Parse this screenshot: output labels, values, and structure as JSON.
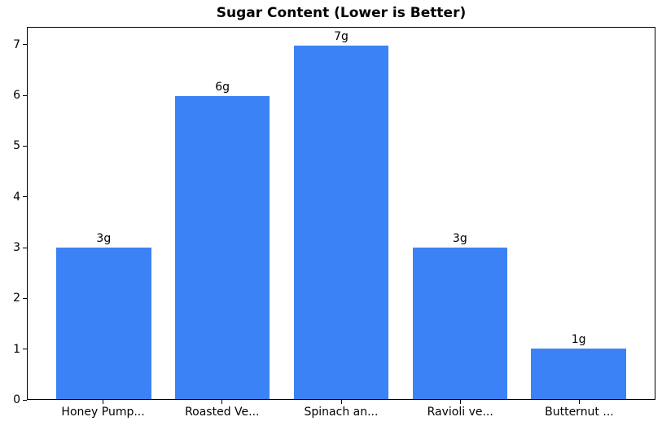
{
  "chart_data": {
    "type": "bar",
    "title": "Sugar Content (Lower is Better)",
    "categories": [
      "Honey Pump...",
      "Roasted Ve...",
      "Spinach an...",
      "Ravioli ve...",
      "Butternut ..."
    ],
    "values": [
      3,
      6,
      7,
      3,
      1
    ],
    "bar_labels": [
      "3g",
      "6g",
      "7g",
      "3g",
      "1g"
    ],
    "xlabel": "",
    "ylabel": "",
    "ylim": [
      0,
      7.35
    ],
    "yticks": [
      0,
      1,
      2,
      3,
      4,
      5,
      6,
      7
    ],
    "bar_width_fraction": 0.8,
    "bar_color": "#3b82f6",
    "axis_color": "#000000",
    "text_color": "#000000",
    "background_color": "#ffffff",
    "grid": false,
    "legend": null
  }
}
